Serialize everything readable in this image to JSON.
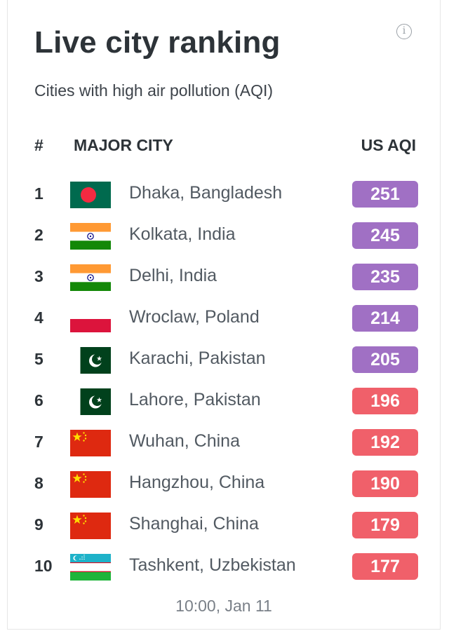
{
  "card": {
    "title": "Live city ranking",
    "subtitle": "Cities with high air pollution (AQI)",
    "info_icon": "info-circle-icon",
    "info_glyph": "i"
  },
  "table": {
    "headers": {
      "rank": "#",
      "city": "MAJOR CITY",
      "aqi": "US AQI"
    },
    "rows": [
      {
        "rank": "1",
        "city": "Dhaka, Bangladesh",
        "aqi": "251",
        "flag": "bangladesh-flag-icon",
        "color": "#a070c4"
      },
      {
        "rank": "2",
        "city": "Kolkata, India",
        "aqi": "245",
        "flag": "india-flag-icon",
        "color": "#a070c4"
      },
      {
        "rank": "3",
        "city": "Delhi, India",
        "aqi": "235",
        "flag": "india-flag-icon",
        "color": "#a070c4"
      },
      {
        "rank": "4",
        "city": "Wroclaw, Poland",
        "aqi": "214",
        "flag": "poland-flag-icon",
        "color": "#a070c4"
      },
      {
        "rank": "5",
        "city": "Karachi, Pakistan",
        "aqi": "205",
        "flag": "pakistan-flag-icon",
        "color": "#a070c4"
      },
      {
        "rank": "6",
        "city": "Lahore, Pakistan",
        "aqi": "196",
        "flag": "pakistan-flag-icon",
        "color": "#f0606a"
      },
      {
        "rank": "7",
        "city": "Wuhan, China",
        "aqi": "192",
        "flag": "china-flag-icon",
        "color": "#f0606a"
      },
      {
        "rank": "8",
        "city": "Hangzhou, China",
        "aqi": "190",
        "flag": "china-flag-icon",
        "color": "#f0606a"
      },
      {
        "rank": "9",
        "city": "Shanghai, China",
        "aqi": "179",
        "flag": "china-flag-icon",
        "color": "#f0606a"
      },
      {
        "rank": "10",
        "city": "Tashkent, Uzbekistan",
        "aqi": "177",
        "flag": "uzbekistan-flag-icon",
        "color": "#f0606a"
      }
    ]
  },
  "footer": {
    "timestamp": "10:00, Jan 11"
  }
}
